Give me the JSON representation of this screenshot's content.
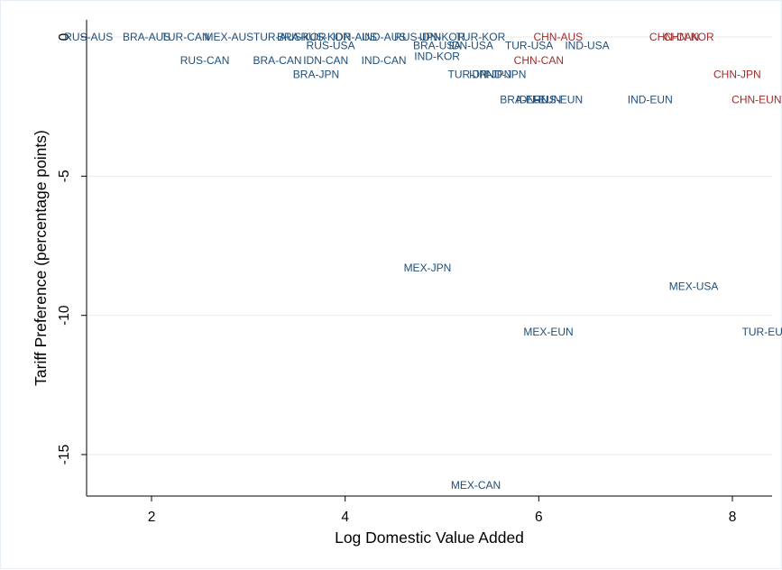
{
  "chart_data": {
    "type": "scatter",
    "title": "",
    "xlabel": "Log Domestic Value Added",
    "ylabel": "Tariff Preference (percentage points)",
    "xlim": [
      1.3,
      8.45
    ],
    "ylim": [
      -16.9,
      0.6
    ],
    "xticks": [
      2,
      4,
      6,
      8
    ],
    "yticks": [
      0,
      -5,
      -10,
      -15
    ],
    "grid": "horizontal",
    "legend": "none",
    "colors": {
      "default": "#1f4e79",
      "china": "#a02c2c"
    },
    "points": [
      {
        "label": "RUS-AUS",
        "x": 1.35,
        "y": 0.0,
        "group": "default"
      },
      {
        "label": "BRA-AUS",
        "x": 1.95,
        "y": 0.0,
        "group": "default"
      },
      {
        "label": "TUR-CAN",
        "x": 2.35,
        "y": 0.0,
        "group": "default"
      },
      {
        "label": "MEX-AUS",
        "x": 2.8,
        "y": 0.0,
        "group": "default"
      },
      {
        "label": "TUR-AUS",
        "x": 3.3,
        "y": 0.0,
        "group": "default"
      },
      {
        "label": "BRA-KOR",
        "x": 3.55,
        "y": 0.0,
        "group": "default"
      },
      {
        "label": "RUS-KOR",
        "x": 3.8,
        "y": 0.0,
        "group": "default"
      },
      {
        "label": "IDN-AUS",
        "x": 4.1,
        "y": 0.0,
        "group": "default"
      },
      {
        "label": "IND-AUS",
        "x": 4.4,
        "y": 0.0,
        "group": "default"
      },
      {
        "label": "RUS-JPN",
        "x": 4.75,
        "y": 0.0,
        "group": "default"
      },
      {
        "label": "IDN-KOR",
        "x": 5.0,
        "y": 0.0,
        "group": "default"
      },
      {
        "label": "TUR-KOR",
        "x": 5.4,
        "y": 0.0,
        "group": "default"
      },
      {
        "label": "CHN-AUS",
        "x": 6.2,
        "y": 0.0,
        "group": "china"
      },
      {
        "label": "CHN-CAN",
        "x": 7.4,
        "y": 0.0,
        "group": "china"
      },
      {
        "label": "CHN-KOR",
        "x": 7.55,
        "y": 0.0,
        "group": "china"
      },
      {
        "label": "RUS-USA",
        "x": 3.85,
        "y": -0.3,
        "group": "default"
      },
      {
        "label": "BRA-USA",
        "x": 4.95,
        "y": -0.3,
        "group": "default"
      },
      {
        "label": "IDN-USA",
        "x": 5.3,
        "y": -0.3,
        "group": "default"
      },
      {
        "label": "TUR-USA",
        "x": 5.9,
        "y": -0.3,
        "group": "default"
      },
      {
        "label": "IND-USA",
        "x": 6.5,
        "y": -0.3,
        "group": "default"
      },
      {
        "label": "RUS-CAN",
        "x": 2.55,
        "y": -0.85,
        "group": "default"
      },
      {
        "label": "BRA-CAN",
        "x": 3.3,
        "y": -0.85,
        "group": "default"
      },
      {
        "label": "IDN-CAN",
        "x": 3.8,
        "y": -0.85,
        "group": "default"
      },
      {
        "label": "IND-CAN",
        "x": 4.4,
        "y": -0.85,
        "group": "default"
      },
      {
        "label": "IND-KOR",
        "x": 4.95,
        "y": -0.7,
        "group": "default"
      },
      {
        "label": "CHN-CAN",
        "x": 6.0,
        "y": -0.85,
        "group": "china"
      },
      {
        "label": "BRA-JPN",
        "x": 3.7,
        "y": -1.35,
        "group": "default"
      },
      {
        "label": "TUR-JPN",
        "x": 5.3,
        "y": -1.35,
        "group": "default"
      },
      {
        "label": "IDN-JPN",
        "x": 5.5,
        "y": -1.35,
        "group": "default"
      },
      {
        "label": "IND-JPN",
        "x": 5.65,
        "y": -1.35,
        "group": "default"
      },
      {
        "label": "CHN-JPN",
        "x": 8.05,
        "y": -1.35,
        "group": "china"
      },
      {
        "label": "BRA-EUN",
        "x": 5.85,
        "y": -2.25,
        "group": "default"
      },
      {
        "label": "IDN-EUN",
        "x": 6.0,
        "y": -2.25,
        "group": "default"
      },
      {
        "label": "RUS-EUN",
        "x": 6.2,
        "y": -2.25,
        "group": "default"
      },
      {
        "label": "IND-EUN",
        "x": 7.15,
        "y": -2.25,
        "group": "default"
      },
      {
        "label": "CHN-EUN",
        "x": 8.25,
        "y": -2.25,
        "group": "china"
      },
      {
        "label": "MEX-JPN",
        "x": 4.85,
        "y": -8.3,
        "group": "default"
      },
      {
        "label": "MEX-USA",
        "x": 7.6,
        "y": -8.95,
        "group": "default"
      },
      {
        "label": "MEX-EUN",
        "x": 6.1,
        "y": -10.6,
        "group": "default"
      },
      {
        "label": "TUR-EUN",
        "x": 8.35,
        "y": -10.6,
        "group": "default"
      },
      {
        "label": "MEX-CAN",
        "x": 5.35,
        "y": -16.1,
        "group": "default"
      }
    ]
  }
}
